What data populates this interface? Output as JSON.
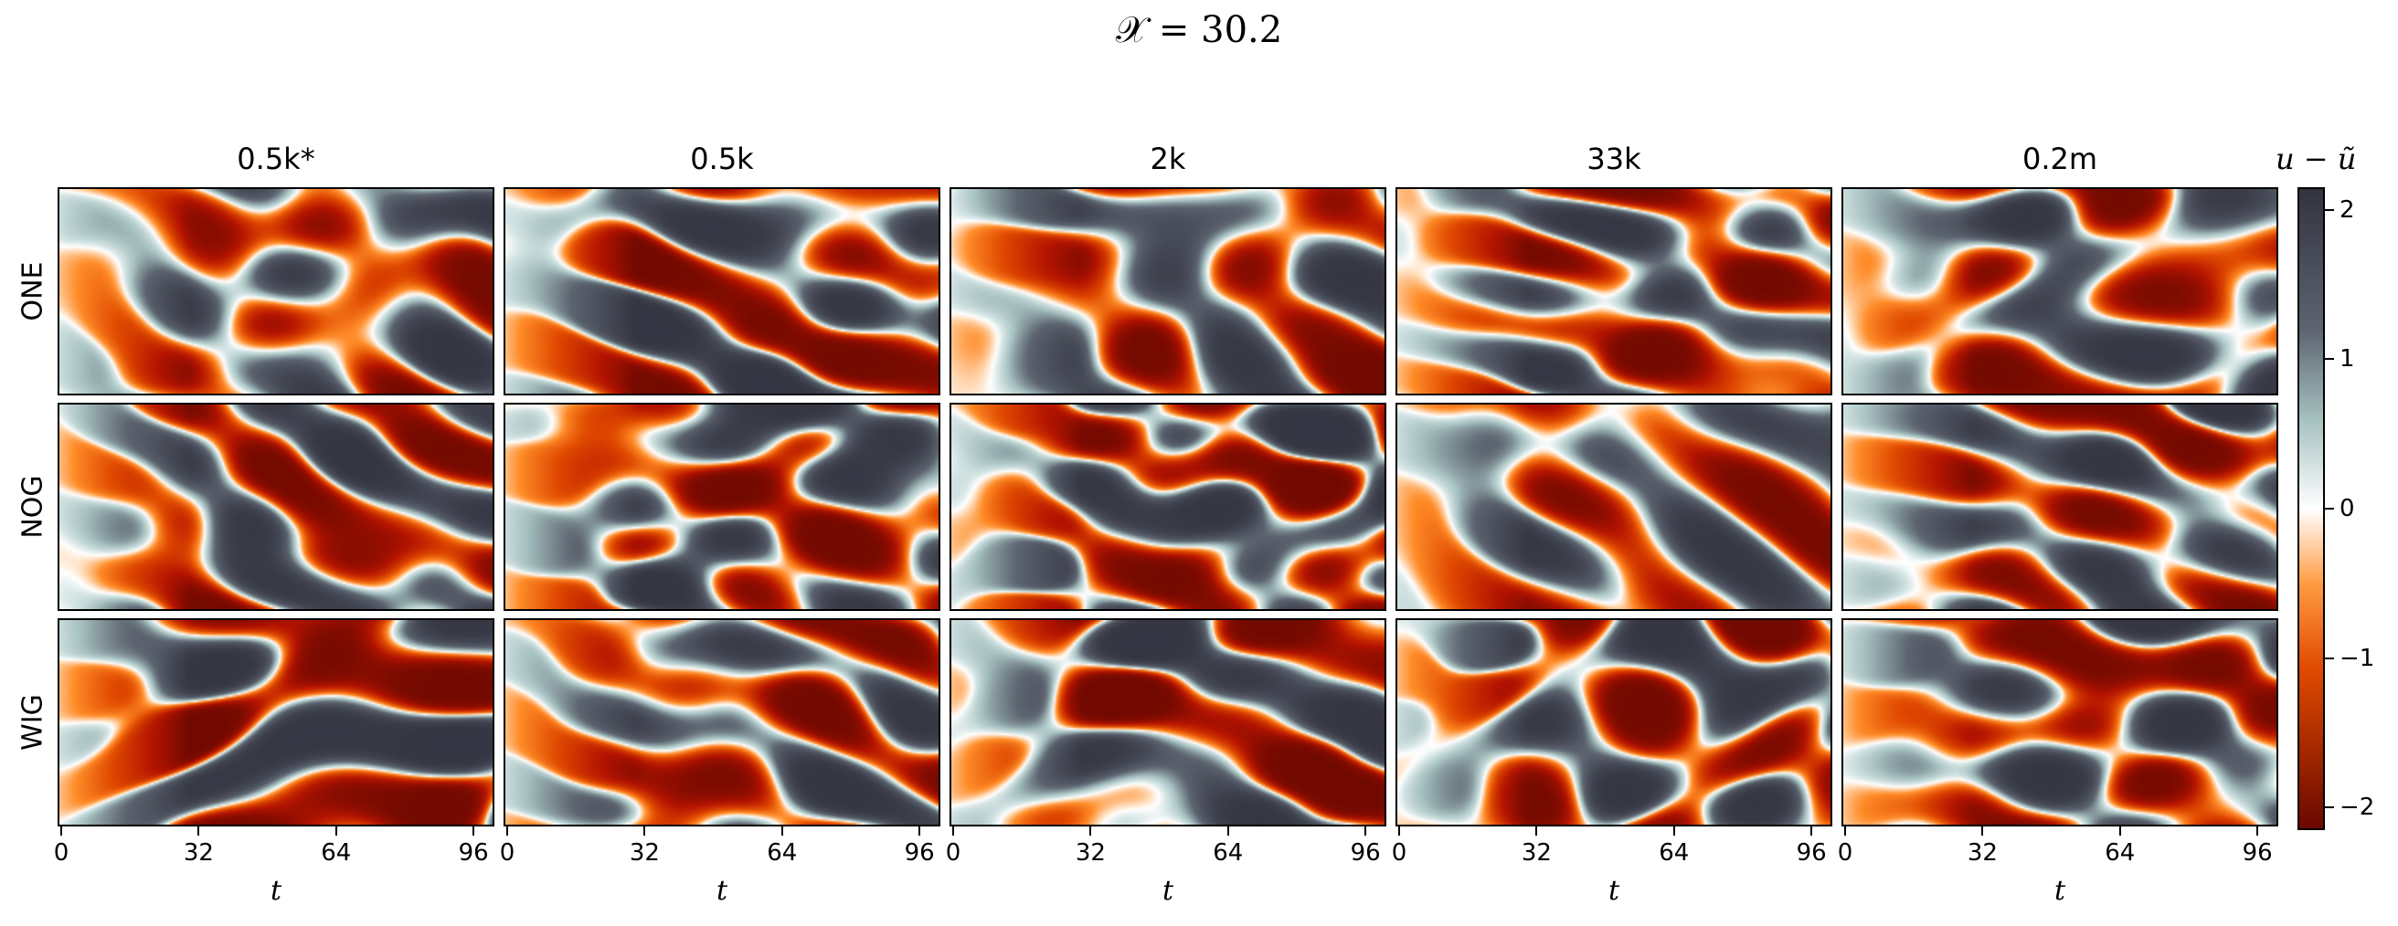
{
  "title": "𝒳 = 30.2",
  "chart_data": {
    "type": "heatmap",
    "title": "𝒳 = 30.2",
    "columns": [
      "0.5k*",
      "0.5k",
      "2k",
      "33k",
      "0.2m"
    ],
    "rows": [
      "ONE",
      "NOG",
      "WIG"
    ],
    "xlabel": "t",
    "xticks": [
      0,
      32,
      64,
      96
    ],
    "xlim": [
      0,
      100
    ],
    "colorbar": {
      "label": "u − ũ",
      "ticks": [
        2,
        1,
        0,
        -1,
        -2
      ],
      "tick_labels": [
        "2",
        "1",
        "0",
        "−1",
        "−2"
      ],
      "range": [
        -2.15,
        2.15
      ],
      "colors": {
        "high": "#333340",
        "mid_high": "#9fb8b8",
        "zero": "#ffffff",
        "mid_low": "#ff7a10",
        "low": "#7a0a00"
      }
    },
    "panels": [
      {
        "row": "ONE",
        "col": "0.5k*",
        "seed": 11
      },
      {
        "row": "ONE",
        "col": "0.5k",
        "seed": 23
      },
      {
        "row": "ONE",
        "col": "2k",
        "seed": 37
      },
      {
        "row": "ONE",
        "col": "33k",
        "seed": 41
      },
      {
        "row": "ONE",
        "col": "0.2m",
        "seed": 53
      },
      {
        "row": "NOG",
        "col": "0.5k*",
        "seed": 67
      },
      {
        "row": "NOG",
        "col": "0.5k",
        "seed": 71
      },
      {
        "row": "NOG",
        "col": "2k",
        "seed": 83
      },
      {
        "row": "NOG",
        "col": "33k",
        "seed": 97
      },
      {
        "row": "NOG",
        "col": "0.2m",
        "seed": 101
      },
      {
        "row": "WIG",
        "col": "0.5k*",
        "seed": 113
      },
      {
        "row": "WIG",
        "col": "0.5k",
        "seed": 127
      },
      {
        "row": "WIG",
        "col": "2k",
        "seed": 131
      },
      {
        "row": "WIG",
        "col": "33k",
        "seed": 149
      },
      {
        "row": "WIG",
        "col": "0.2m",
        "seed": 157
      }
    ]
  }
}
